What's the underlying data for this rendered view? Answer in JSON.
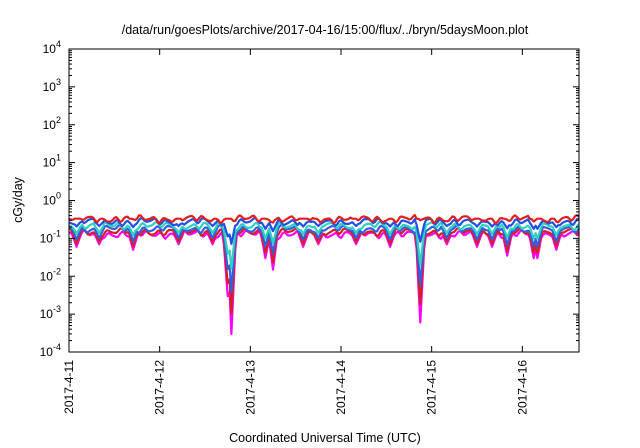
{
  "chart_data": {
    "type": "line",
    "title": "/data/run/goesPlots/archive/2017-04-16/15:00/flux/../bryn/5daysMoon.plot",
    "xlabel": "Coordinated Universal Time (UTC)",
    "ylabel": "cGy/day",
    "y_scale": "log",
    "ylim": [
      0.0001,
      10000
    ],
    "y_ticks": [
      {
        "base": "10",
        "exp": "-4"
      },
      {
        "base": "10",
        "exp": "-3"
      },
      {
        "base": "10",
        "exp": "-2"
      },
      {
        "base": "10",
        "exp": "-1"
      },
      {
        "base": "10",
        "exp": "0"
      },
      {
        "base": "10",
        "exp": "1"
      },
      {
        "base": "10",
        "exp": "2"
      },
      {
        "base": "10",
        "exp": "3"
      },
      {
        "base": "10",
        "exp": "4"
      }
    ],
    "xlim": [
      "2017-04-11",
      "2017-04-16T15:00"
    ],
    "x_ticks": [
      "2017-4-11",
      "2017-4-12",
      "2017-4-13",
      "2017-4-14",
      "2017-4-15",
      "2017-4-16"
    ],
    "grid": false,
    "legend": "none",
    "series": [
      {
        "color": "#ff00ff",
        "baseline": 0.13
      },
      {
        "color": "#d62020",
        "baseline": 0.15
      },
      {
        "color": "#3060e0",
        "baseline": 0.18
      },
      {
        "color": "#30d0c0",
        "baseline": 0.22
      },
      {
        "color": "#2050e8",
        "baseline": 0.28
      },
      {
        "color": "#e02020",
        "baseline": 0.33
      }
    ],
    "dips": [
      {
        "time": "2017-04-11T02:00",
        "magenta_min": 0.06
      },
      {
        "time": "2017-04-11T08:00",
        "magenta_min": 0.07
      },
      {
        "time": "2017-04-11T17:00",
        "magenta_min": 0.05
      },
      {
        "time": "2017-04-12T05:00",
        "magenta_min": 0.07
      },
      {
        "time": "2017-04-12T14:00",
        "magenta_min": 0.07
      },
      {
        "time": "2017-04-12T18:00",
        "magenta_min": 0.003
      },
      {
        "time": "2017-04-12T19:00",
        "magenta_min": 0.0003
      },
      {
        "time": "2017-04-13T04:00",
        "magenta_min": 0.03
      },
      {
        "time": "2017-04-13T06:00",
        "magenta_min": 0.015
      },
      {
        "time": "2017-04-13T14:00",
        "magenta_min": 0.06
      },
      {
        "time": "2017-04-13T18:00",
        "magenta_min": 0.07
      },
      {
        "time": "2017-04-14T04:00",
        "magenta_min": 0.07
      },
      {
        "time": "2017-04-14T13:00",
        "magenta_min": 0.06
      },
      {
        "time": "2017-04-14T21:00",
        "magenta_min": 0.0006
      },
      {
        "time": "2017-04-15T04:00",
        "magenta_min": 0.07
      },
      {
        "time": "2017-04-15T12:00",
        "magenta_min": 0.06
      },
      {
        "time": "2017-04-15T16:00",
        "magenta_min": 0.06
      },
      {
        "time": "2017-04-15T20:00",
        "magenta_min": 0.035
      },
      {
        "time": "2017-04-16T03:00",
        "magenta_min": 0.03
      },
      {
        "time": "2017-04-16T04:00",
        "magenta_min": 0.03
      },
      {
        "time": "2017-04-16T09:00",
        "magenta_min": 0.05
      }
    ]
  }
}
